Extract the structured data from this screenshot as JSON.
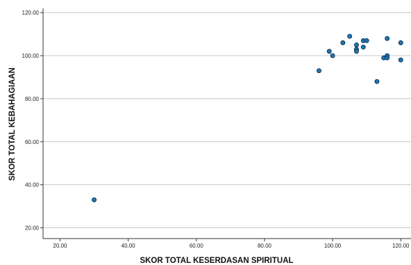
{
  "chart_data": {
    "type": "scatter",
    "title": "",
    "xlabel": "SKOR TOTAL KESERDASAN SPIRITUAL",
    "ylabel": "SKOR TOTAL KEBAHAGIAAN",
    "xlim": [
      15,
      123
    ],
    "ylim": [
      15,
      122
    ],
    "x_ticks": [
      "20.00",
      "40.00",
      "60.00",
      "80.00",
      "100.00",
      "120.00"
    ],
    "y_ticks": [
      "20.00",
      "40.00",
      "60.00",
      "80.00",
      "100.00",
      "120.00"
    ],
    "grid": "horizontal",
    "marker_color": "#1f77b4",
    "points": [
      {
        "x": 30,
        "y": 33
      },
      {
        "x": 96,
        "y": 93
      },
      {
        "x": 99,
        "y": 102
      },
      {
        "x": 100,
        "y": 100
      },
      {
        "x": 103,
        "y": 106
      },
      {
        "x": 105,
        "y": 109
      },
      {
        "x": 107,
        "y": 105
      },
      {
        "x": 107,
        "y": 103
      },
      {
        "x": 107,
        "y": 102
      },
      {
        "x": 109,
        "y": 107
      },
      {
        "x": 109,
        "y": 104
      },
      {
        "x": 110,
        "y": 107
      },
      {
        "x": 113,
        "y": 88
      },
      {
        "x": 115,
        "y": 99
      },
      {
        "x": 116,
        "y": 108
      },
      {
        "x": 116,
        "y": 100
      },
      {
        "x": 116,
        "y": 99
      },
      {
        "x": 120,
        "y": 106
      },
      {
        "x": 120,
        "y": 98
      }
    ]
  }
}
